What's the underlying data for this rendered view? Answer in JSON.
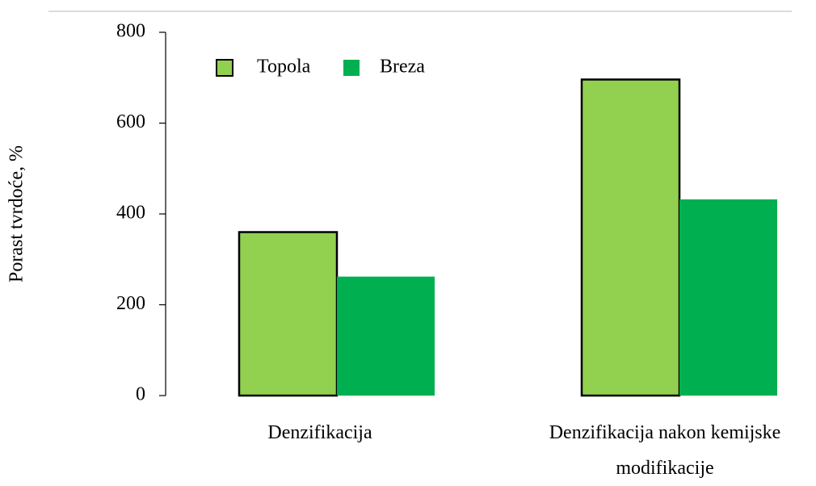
{
  "chart_data": {
    "type": "bar",
    "y_label": "Porast tvrdoće, %",
    "categories": [
      "Denzifikacija",
      "Denzifikacija nakon kemijske modifikacije"
    ],
    "series": [
      {
        "name": "Topola",
        "color": "#92d050",
        "values": [
          360,
          696
        ]
      },
      {
        "name": "Breza",
        "color": "#00b050",
        "values": [
          262,
          432
        ]
      }
    ],
    "ylim": [
      0,
      800
    ],
    "yticks": [
      0,
      200,
      400,
      600,
      800
    ]
  }
}
